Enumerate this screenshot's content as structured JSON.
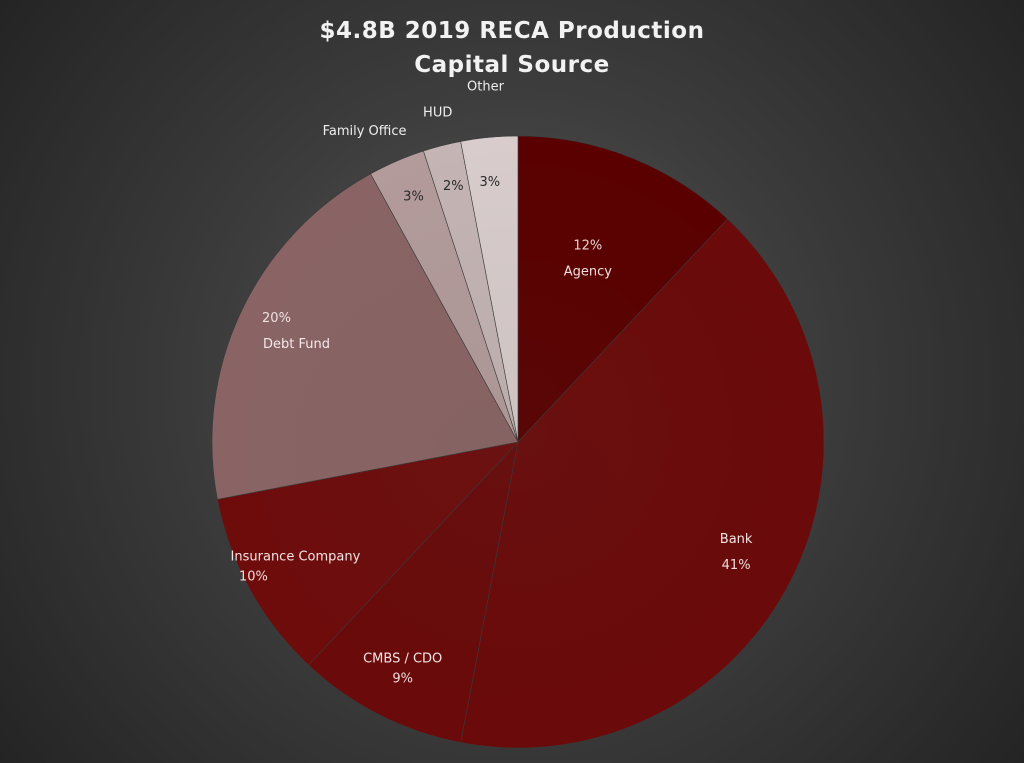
{
  "chart_data": {
    "type": "pie",
    "title_line1": "$4.8B 2019 RECA Production",
    "title_line2": "Capital  Source",
    "slices": [
      {
        "label": "Agency",
        "value": 12,
        "pct_text": "12%",
        "color": "#5a0000"
      },
      {
        "label": "Bank",
        "value": 41,
        "pct_text": "41%",
        "color": "#6b0a0a"
      },
      {
        "label": "CMBS / CDO",
        "value": 9,
        "pct_text": "9%",
        "color": "#6a0a0a"
      },
      {
        "label": "Insurance Company",
        "value": 10,
        "pct_text": "10%",
        "color": "#6e0c0c"
      },
      {
        "label": "Debt Fund",
        "value": 20,
        "pct_text": "20%",
        "color": "#8a6464"
      },
      {
        "label": "Family Office",
        "value": 3,
        "pct_text": "3%",
        "color": "#b39b9b"
      },
      {
        "label": "HUD",
        "value": 2,
        "pct_text": "2%",
        "color": "#c4b4b4"
      },
      {
        "label": "Other",
        "value": 3,
        "pct_text": "3%",
        "color": "#d8cccc"
      }
    ]
  }
}
